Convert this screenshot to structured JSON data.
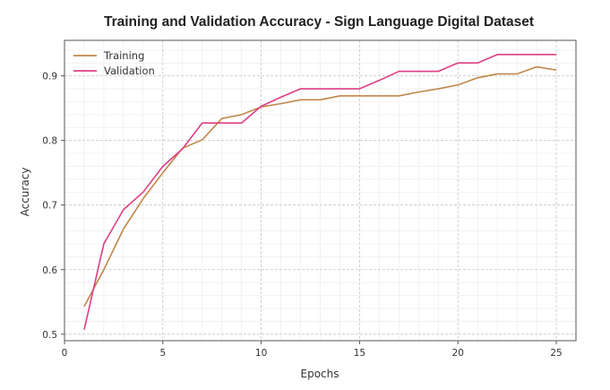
{
  "chart_data": {
    "type": "line",
    "title": "Training and Validation Accuracy - Sign Language Digital Dataset",
    "xlabel": "Epochs",
    "ylabel": "Accuracy",
    "xlim": [
      0,
      26
    ],
    "ylim": [
      0.49,
      0.955
    ],
    "x_ticks": [
      0,
      5,
      10,
      15,
      20,
      25
    ],
    "y_ticks": [
      0.5,
      0.6,
      0.7,
      0.8,
      0.9
    ],
    "x_tick_labels": [
      "0",
      "5",
      "10",
      "15",
      "20",
      "25"
    ],
    "y_tick_labels": [
      "0.5",
      "0.6",
      "0.7",
      "0.8",
      "0.9"
    ],
    "grid": true,
    "minor_grid": true,
    "legend_position": "top-left",
    "x": [
      1,
      2,
      3,
      4,
      5,
      6,
      7,
      8,
      9,
      10,
      11,
      12,
      13,
      14,
      15,
      16,
      17,
      18,
      19,
      20,
      21,
      22,
      23,
      24,
      25
    ],
    "series": [
      {
        "name": "Training",
        "color": "#c0874a",
        "values": [
          0.543,
          0.6,
          0.663,
          0.71,
          0.75,
          0.788,
          0.801,
          0.834,
          0.84,
          0.852,
          0.857,
          0.863,
          0.863,
          0.869,
          0.869,
          0.869,
          0.869,
          0.875,
          0.88,
          0.886,
          0.897,
          0.903,
          0.903,
          0.914,
          0.909
        ]
      },
      {
        "name": "Validation",
        "color": "#dd3f82",
        "values": [
          0.507,
          0.64,
          0.693,
          0.72,
          0.76,
          0.787,
          0.827,
          0.827,
          0.827,
          0.853,
          0.867,
          0.88,
          0.88,
          0.88,
          0.88,
          0.893,
          0.907,
          0.907,
          0.907,
          0.92,
          0.92,
          0.933,
          0.933,
          0.933,
          0.933
        ]
      }
    ]
  }
}
